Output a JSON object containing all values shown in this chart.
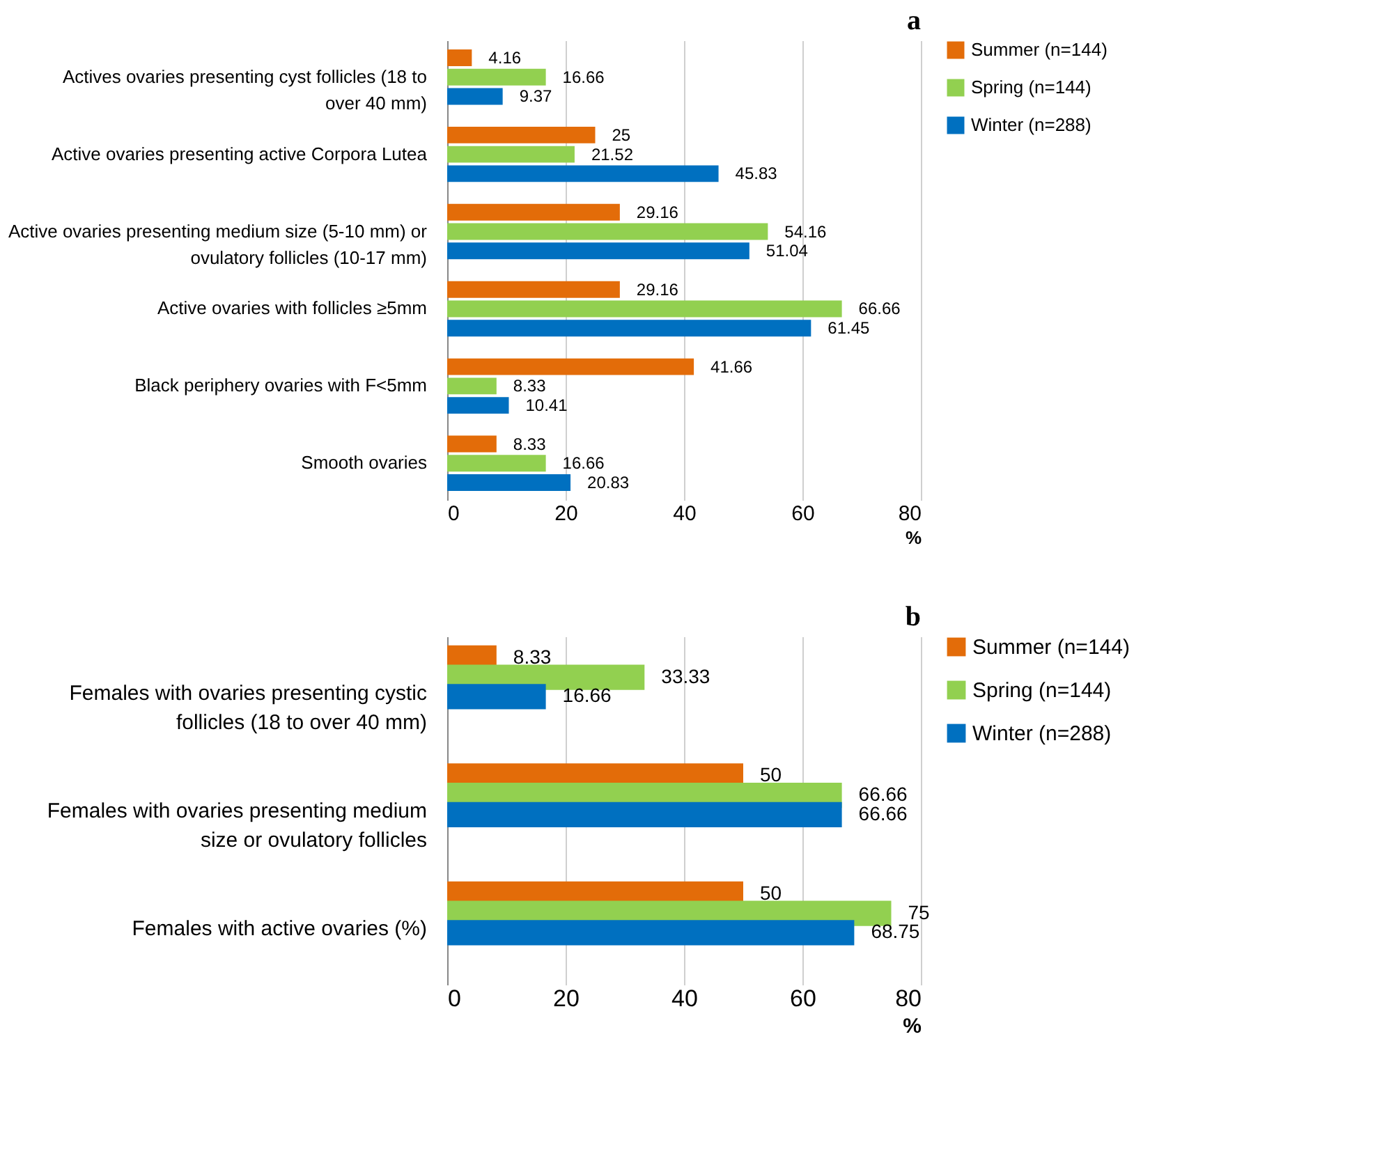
{
  "chart_data": [
    {
      "type": "bar",
      "orientation": "horizontal",
      "title": "a",
      "xlabel": "%",
      "categories": [
        "Actives ovaries presenting cyst follicles (18 to over 40 mm)",
        "Active ovaries presenting active Corpora Lutea",
        "Active ovaries presenting medium size (5-10 mm) or ovulatory follicles (10-17 mm)",
        "Active ovaries with follicles  ≥5mm",
        "Black periphery ovaries with F<5mm",
        "Smooth ovaries"
      ],
      "series": [
        {
          "name": "Summer (n=144)",
          "color": "#e36c09",
          "values": [
            4.16,
            25,
            29.16,
            29.16,
            41.66,
            8.33
          ]
        },
        {
          "name": "Spring (n=144)",
          "color": "#92d050",
          "values": [
            16.66,
            21.52,
            54.16,
            66.66,
            8.33,
            16.66
          ]
        },
        {
          "name": "Winter (n=288)",
          "color": "#0070c0",
          "values": [
            9.37,
            45.83,
            51.04,
            61.45,
            10.41,
            20.83
          ]
        }
      ],
      "xlim": [
        0,
        80
      ],
      "xticks": [
        0,
        20,
        40,
        60,
        80
      ],
      "grid": "x",
      "legend": "right",
      "data_labels": true
    },
    {
      "type": "bar",
      "orientation": "horizontal",
      "title": "b",
      "xlabel": "%",
      "categories": [
        "Females with ovaries presenting cystic follicles (18 to over 40 mm)",
        "Females with ovaries presenting medium size or ovulatory follicles",
        "Females with active ovaries (%)"
      ],
      "series": [
        {
          "name": "Summer (n=144)",
          "color": "#e36c09",
          "values": [
            8.33,
            50,
            50
          ]
        },
        {
          "name": "Spring (n=144)",
          "color": "#92d050",
          "values": [
            33.33,
            66.66,
            75
          ]
        },
        {
          "name": "Winter (n=288)",
          "color": "#0070c0",
          "values": [
            16.66,
            66.66,
            68.75
          ]
        }
      ],
      "xlim": [
        0,
        80
      ],
      "xticks": [
        0,
        20,
        40,
        60,
        80
      ],
      "grid": "x",
      "legend": "right",
      "data_labels": true
    }
  ]
}
